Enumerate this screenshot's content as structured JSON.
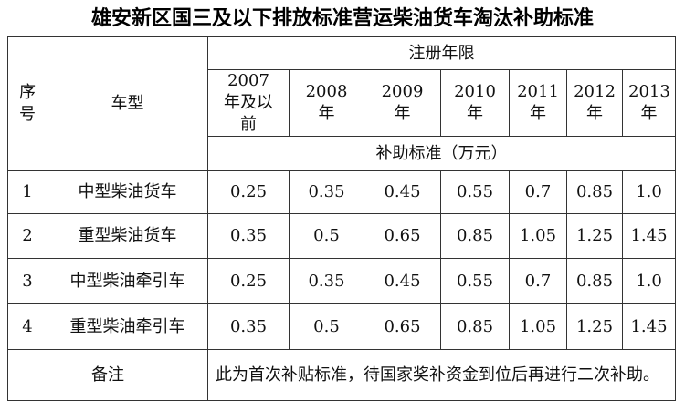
{
  "title": "雄安新区国三及以下排放标准营运柴油货车淘汰补助标准",
  "header": {
    "index": "序号",
    "vehicle_type": "车型",
    "registration_years": "注册年限",
    "subsidy": "补助标准（万元）",
    "years": [
      "2007 年及以前",
      "2008 年",
      "2009 年",
      "2010 年",
      "2011 年",
      "2012 年",
      "2013 年"
    ]
  },
  "rows": [
    {
      "index": "1",
      "type": "中型柴油货车",
      "values": [
        "0.25",
        "0.35",
        "0.45",
        "0.55",
        "0.7",
        "0.85",
        "1.0"
      ]
    },
    {
      "index": "2",
      "type": "重型柴油货车",
      "values": [
        "0.35",
        "0.5",
        "0.65",
        "0.85",
        "1.05",
        "1.25",
        "1.45"
      ]
    },
    {
      "index": "3",
      "type": "中型柴油牵引车",
      "values": [
        "0.25",
        "0.35",
        "0.45",
        "0.55",
        "0.7",
        "0.85",
        "1.0"
      ]
    },
    {
      "index": "4",
      "type": "重型柴油牵引车",
      "values": [
        "0.35",
        "0.5",
        "0.65",
        "0.85",
        "1.05",
        "1.25",
        "1.45"
      ]
    }
  ],
  "remark": {
    "label": "备注",
    "text": "此为首次补贴标准，待国家奖补资金到位后再进行二次补助。"
  }
}
